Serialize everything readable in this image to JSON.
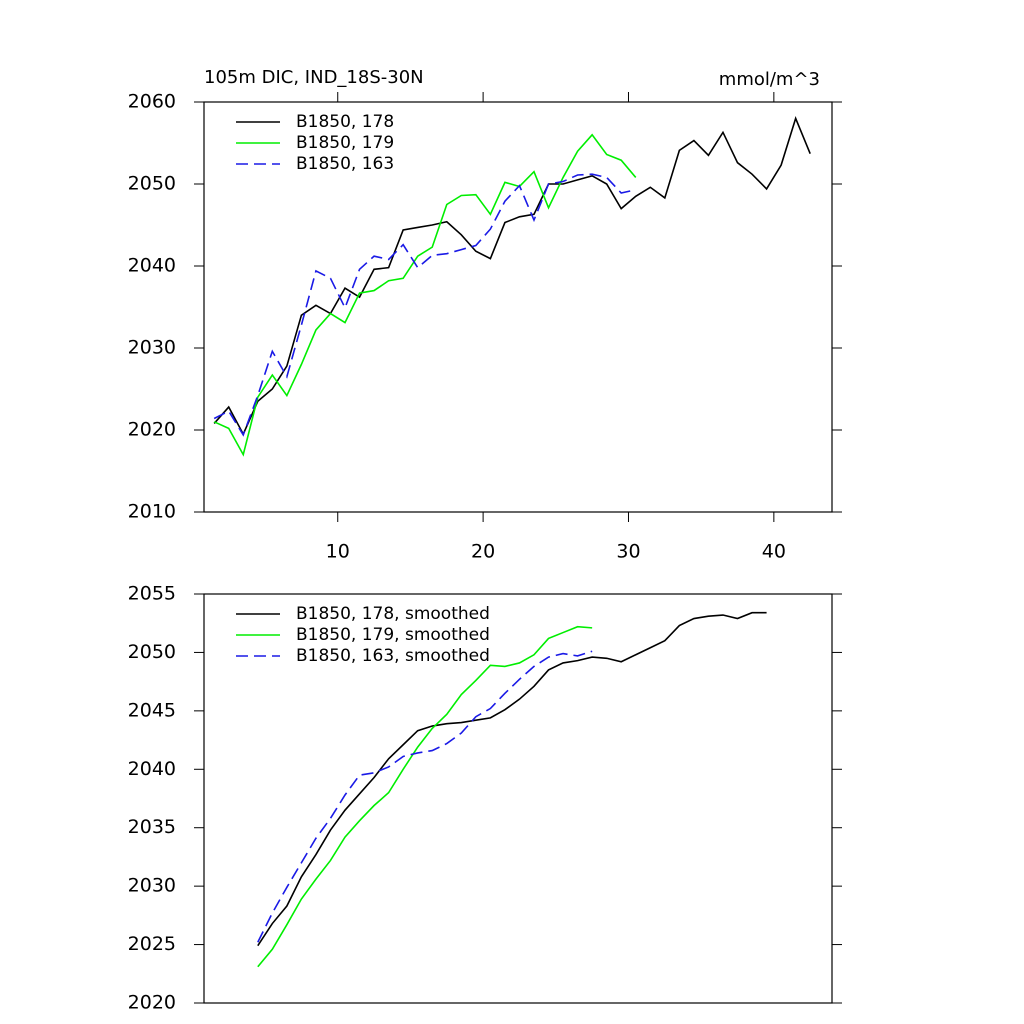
{
  "chart_data": [
    {
      "type": "line",
      "title": "105m DIC, IND_18S-30N",
      "units": "mmol/m^3",
      "xlim": [
        0.8,
        44
      ],
      "xticks": [
        10,
        20,
        30,
        40
      ],
      "ylim": [
        2010,
        2060
      ],
      "yticks": [
        2010,
        2020,
        2030,
        2040,
        2050,
        2060
      ],
      "legend": "upper-left",
      "series": [
        {
          "name": "B1850, 178",
          "color": "#000000",
          "line_style": "solid",
          "x": [
            1.5,
            2.5,
            3.5,
            4.5,
            5.5,
            6.5,
            7.5,
            8.5,
            9.5,
            10.5,
            11.5,
            12.5,
            13.5,
            14.5,
            15.5,
            16.5,
            17.5,
            18.5,
            19.5,
            20.5,
            21.5,
            22.5,
            23.5,
            24.5,
            25.5,
            26.5,
            27.5,
            28.5,
            29.5,
            30.5,
            31.5,
            32.5,
            33.5,
            34.5,
            35.5,
            36.5,
            37.5,
            38.5,
            39.5,
            40.5,
            41.5,
            42.5
          ],
          "values": [
            2020.8,
            2022.8,
            2019.5,
            2023.5,
            2025,
            2027.8,
            2034,
            2035.2,
            2034.2,
            2037.3,
            2036.2,
            2039.6,
            2039.8,
            2044.4,
            2044.7,
            2045,
            2045.4,
            2043.8,
            2041.8,
            2040.9,
            2045.3,
            2046,
            2046.3,
            2050,
            2050,
            2050.5,
            2051,
            2050,
            2047,
            2048.5,
            2049.6,
            2048.3,
            2054.1,
            2055.3,
            2053.5,
            2056.3,
            2052.6,
            2051.2,
            2049.4,
            2052.3,
            2058,
            2053.7
          ]
        },
        {
          "name": "B1850, 179",
          "color": "#00ee00",
          "line_style": "solid",
          "x": [
            1.5,
            2.5,
            3.5,
            4.5,
            5.5,
            6.5,
            7.5,
            8.5,
            9.5,
            10.5,
            11.5,
            12.5,
            13.5,
            14.5,
            15.5,
            16.5,
            17.5,
            18.5,
            19.5,
            20.5,
            21.5,
            22.5,
            23.5,
            24.5,
            25.5,
            26.5,
            27.5,
            28.5,
            29.5,
            30.5
          ],
          "values": [
            2021,
            2020.2,
            2017,
            2024,
            2026.7,
            2024.2,
            2028,
            2032.2,
            2034.2,
            2033.1,
            2036.7,
            2037,
            2038.2,
            2038.5,
            2041.2,
            2042.3,
            2047.5,
            2048.6,
            2048.7,
            2046.3,
            2050.2,
            2049.7,
            2051.5,
            2047.1,
            2050.8,
            2054,
            2056,
            2053.6,
            2052.9,
            2050.8
          ]
        },
        {
          "name": "B1850, 163",
          "color": "#1a1ae6",
          "line_style": "dashed",
          "x": [
            1.5,
            2.5,
            3.5,
            4.5,
            5.5,
            6.5,
            7.5,
            8.5,
            9.5,
            10.5,
            11.5,
            12.5,
            13.5,
            14.5,
            15.5,
            16.5,
            17.5,
            18.5,
            19.5,
            20.5,
            21.5,
            22.5,
            23.5,
            24.5,
            25.5,
            26.5,
            27.5,
            28.5,
            29.5,
            30.5
          ],
          "values": [
            2021.4,
            2022.3,
            2019.4,
            2024.2,
            2029.6,
            2026.5,
            2032.8,
            2039.4,
            2038.5,
            2034.9,
            2039.6,
            2041.2,
            2040.8,
            2042.6,
            2039.8,
            2041.3,
            2041.5,
            2042,
            2042.5,
            2044.5,
            2047.9,
            2049.8,
            2045.6,
            2050,
            2050.3,
            2051.1,
            2051.2,
            2050.8,
            2048.9,
            2049.3
          ]
        }
      ]
    },
    {
      "type": "line",
      "xlim": [
        0.8,
        44
      ],
      "ylim": [
        2020,
        2055
      ],
      "yticks": [
        2020,
        2025,
        2030,
        2035,
        2040,
        2045,
        2050,
        2055
      ],
      "legend": "upper-left",
      "series": [
        {
          "name": "B1850, 178, smoothed",
          "color": "#000000",
          "line_style": "solid",
          "x": [
            4.5,
            5.5,
            6.5,
            7.5,
            8.5,
            9.5,
            10.5,
            11.5,
            12.5,
            13.5,
            14.5,
            15.5,
            16.5,
            17.5,
            18.5,
            19.5,
            20.5,
            21.5,
            22.5,
            23.5,
            24.5,
            25.5,
            26.5,
            27.5,
            28.5,
            29.5,
            30.5,
            31.5,
            32.5,
            33.5,
            34.5,
            35.5,
            36.5,
            37.5,
            38.5,
            39.5
          ],
          "values": [
            2024.9,
            2026.8,
            2028.3,
            2030.8,
            2032.7,
            2034.8,
            2036.5,
            2037.9,
            2039.3,
            2040.9,
            2042.1,
            2043.3,
            2043.7,
            2043.9,
            2044,
            2044.2,
            2044.4,
            2045.1,
            2046,
            2047.1,
            2048.5,
            2049.1,
            2049.3,
            2049.6,
            2049.5,
            2049.2,
            2049.8,
            2050.4,
            2051,
            2052.3,
            2052.9,
            2053.1,
            2053.2,
            2052.9,
            2053.4,
            2053.4
          ]
        },
        {
          "name": "B1850, 179, smoothed",
          "color": "#00ee00",
          "line_style": "solid",
          "x": [
            4.5,
            5.5,
            6.5,
            7.5,
            8.5,
            9.5,
            10.5,
            11.5,
            12.5,
            13.5,
            14.5,
            15.5,
            16.5,
            17.5,
            18.5,
            19.5,
            20.5,
            21.5,
            22.5,
            23.5,
            24.5,
            25.5,
            26.5,
            27.5
          ],
          "values": [
            2023.1,
            2024.6,
            2026.7,
            2028.9,
            2030.6,
            2032.2,
            2034.2,
            2035.6,
            2036.9,
            2038,
            2040,
            2041.9,
            2043.5,
            2044.7,
            2046.4,
            2047.6,
            2048.9,
            2048.8,
            2049.1,
            2049.8,
            2051.2,
            2051.7,
            2052.2,
            2052.1
          ]
        },
        {
          "name": "B1850, 163, smoothed",
          "color": "#1a1ae6",
          "line_style": "dashed",
          "x": [
            4.5,
            5.5,
            6.5,
            7.5,
            8.5,
            9.5,
            10.5,
            11.5,
            12.5,
            13.5,
            14.5,
            15.5,
            16.5,
            17.5,
            18.5,
            19.5,
            20.5,
            21.5,
            22.5,
            23.5,
            24.5,
            25.5,
            26.5,
            27.5
          ],
          "values": [
            2025.2,
            2027.7,
            2029.9,
            2032,
            2034.1,
            2035.8,
            2037.8,
            2039.5,
            2039.7,
            2040.2,
            2041.1,
            2041.4,
            2041.6,
            2042.2,
            2043.1,
            2044.5,
            2045.2,
            2046.5,
            2047.7,
            2048.8,
            2049.6,
            2049.9,
            2049.7,
            2050.1
          ]
        }
      ]
    }
  ]
}
